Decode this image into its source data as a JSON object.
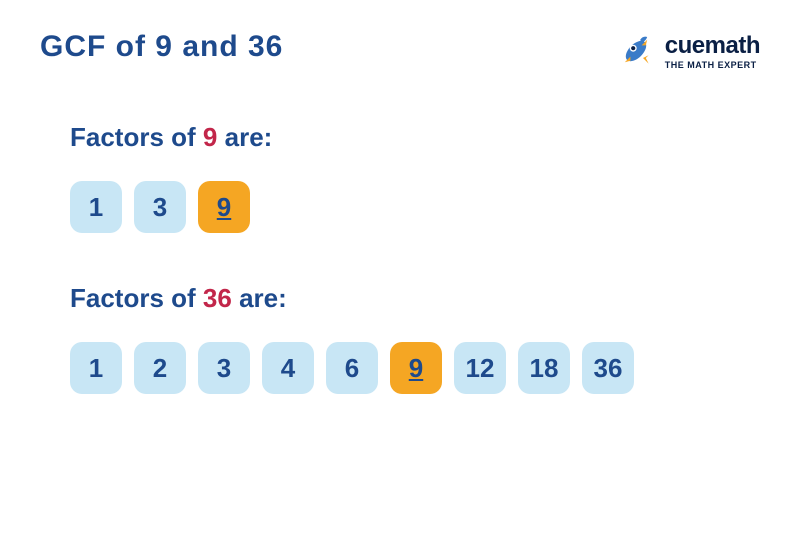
{
  "title": "GCF of 9 and 36",
  "brand": {
    "name": "cuemath",
    "tagline": "THE MATH EXPERT"
  },
  "sections": [
    {
      "label_prefix": "Factors of ",
      "label_number": "9",
      "label_suffix": " are:",
      "factors": [
        {
          "value": "1",
          "is_gcf": false
        },
        {
          "value": "3",
          "is_gcf": false
        },
        {
          "value": "9",
          "is_gcf": true
        }
      ]
    },
    {
      "label_prefix": "Factors of ",
      "label_number": "36",
      "label_suffix": " are:",
      "factors": [
        {
          "value": "1",
          "is_gcf": false
        },
        {
          "value": "2",
          "is_gcf": false
        },
        {
          "value": "3",
          "is_gcf": false
        },
        {
          "value": "4",
          "is_gcf": false
        },
        {
          "value": "6",
          "is_gcf": false
        },
        {
          "value": "9",
          "is_gcf": true
        },
        {
          "value": "12",
          "is_gcf": false
        },
        {
          "value": "18",
          "is_gcf": false
        },
        {
          "value": "36",
          "is_gcf": false
        }
      ]
    }
  ],
  "colors": {
    "title": "#1e4a8c",
    "highlight": "#c2264a",
    "box_normal_bg": "#c8e6f5",
    "box_gcf_bg": "#f5a623",
    "brand_text": "#0a1f44"
  }
}
